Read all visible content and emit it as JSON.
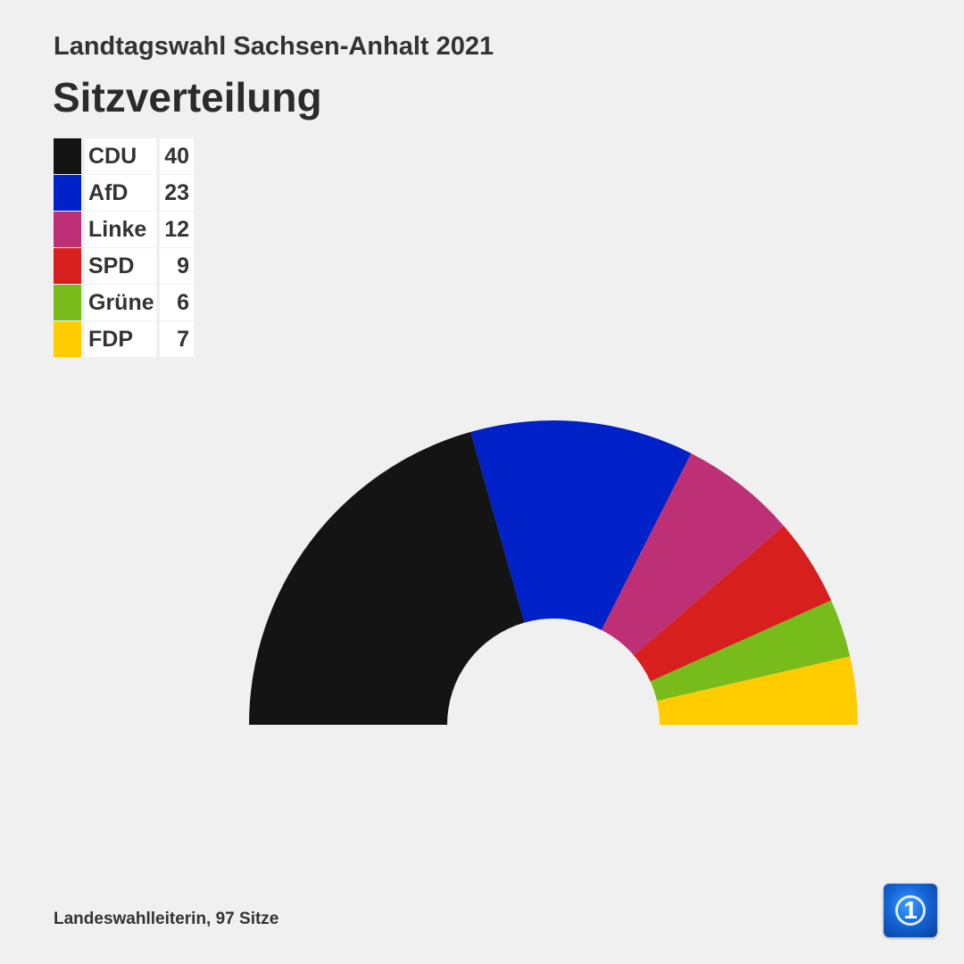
{
  "header": {
    "supertitle": "Landtagswahl Sachsen-Anhalt 2021",
    "title": "Sitzverteilung"
  },
  "footer": {
    "source": "Landeswahlleiterin, 97 Sitze"
  },
  "logo": {
    "icon": "ard-tagesschau-logo-icon",
    "digit": "1"
  },
  "chart_data": {
    "type": "pie",
    "subtype": "parliament-semicircle",
    "title": "Sitzverteilung",
    "legend_placement": "top-left",
    "total_seats": 97,
    "parties": [
      {
        "name": "CDU",
        "seats": 40,
        "color": "#141414"
      },
      {
        "name": "AfD",
        "seats": 23,
        "color": "#0021c8"
      },
      {
        "name": "Linke",
        "seats": 12,
        "color": "#be3075"
      },
      {
        "name": "SPD",
        "seats": 9,
        "color": "#d71f1d"
      },
      {
        "name": "Grüne",
        "seats": 6,
        "color": "#78bc1b"
      },
      {
        "name": "FDP",
        "seats": 7,
        "color": "#ffcc00"
      }
    ]
  }
}
